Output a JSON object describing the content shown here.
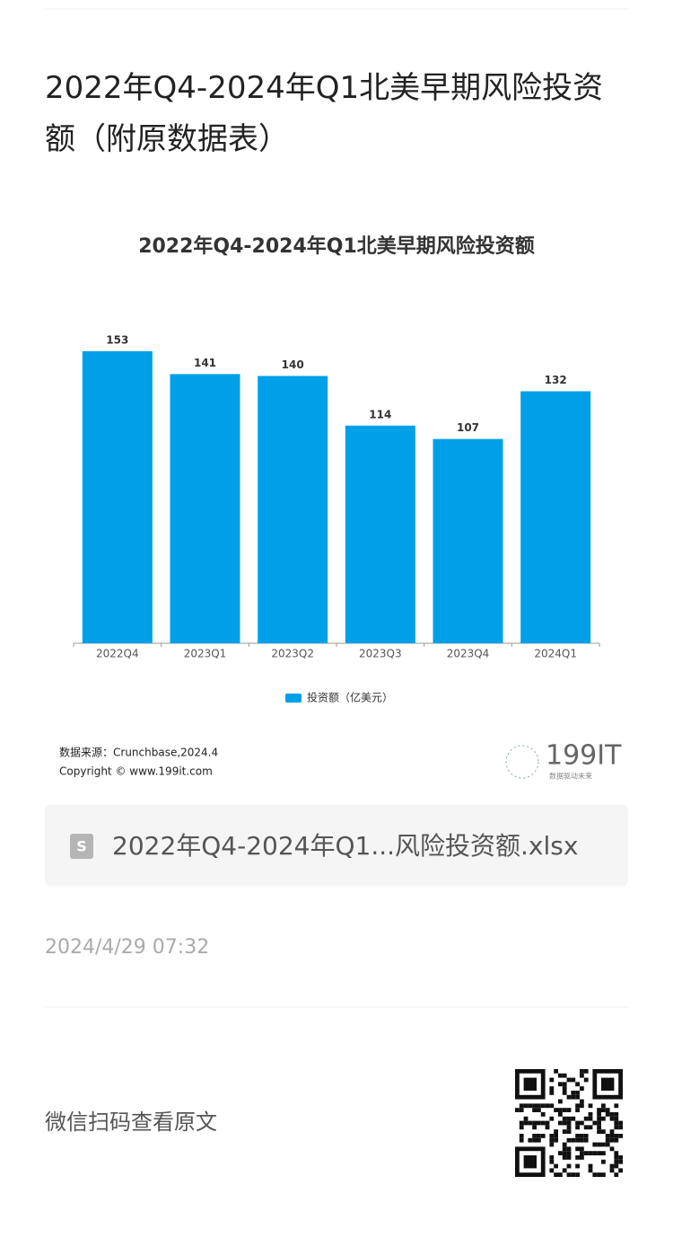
{
  "header": {
    "title": "2022年Q4-2024年Q1北美早期风险投资额（附原数据表）"
  },
  "chart_data": {
    "type": "bar",
    "title": "2022年Q4-2024年Q1北美早期风险投资额",
    "categories": [
      "2022Q4",
      "2023Q1",
      "2023Q2",
      "2023Q3",
      "2023Q4",
      "2024Q1"
    ],
    "series": [
      {
        "name": "投资额（亿美元）",
        "color": "#00a0e9",
        "values": [
          153,
          141,
          140,
          114,
          107,
          132
        ]
      }
    ],
    "ylim": [
      0,
      160
    ],
    "legend": "bottom"
  },
  "source": {
    "line1": "数据来源：Crunchbase,2024.4",
    "line2": "Copyright © www.199it.com"
  },
  "logo": {
    "name": "199IT",
    "tagline": "数据驱动未来"
  },
  "attachment": {
    "filename": "2022年Q4-2024年Q1...风险投资额.xlsx"
  },
  "date": "2024/4/29 07:32",
  "footer": {
    "text": "微信扫码查看原文"
  }
}
